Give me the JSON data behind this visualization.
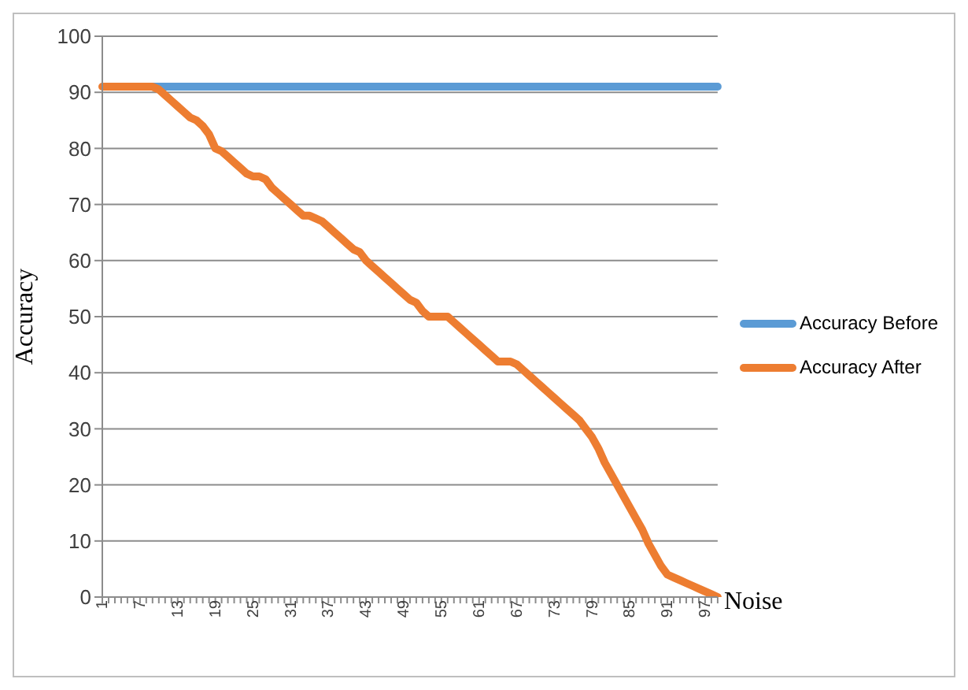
{
  "chart_data": {
    "type": "line",
    "xlabel": "Noise",
    "ylabel": "Accuracy",
    "categories": [
      "1",
      null,
      null,
      null,
      null,
      null,
      "7",
      null,
      null,
      null,
      null,
      null,
      "13",
      null,
      null,
      null,
      null,
      null,
      "19",
      null,
      null,
      null,
      null,
      null,
      "25",
      null,
      null,
      null,
      null,
      null,
      "31",
      null,
      null,
      null,
      null,
      null,
      "37",
      null,
      null,
      null,
      null,
      null,
      "43",
      null,
      null,
      null,
      null,
      null,
      "49",
      null,
      null,
      null,
      null,
      null,
      "55",
      null,
      null,
      null,
      null,
      null,
      "61",
      null,
      null,
      null,
      null,
      null,
      "67",
      null,
      null,
      null,
      null,
      null,
      "73",
      null,
      null,
      null,
      null,
      null,
      "79",
      null,
      null,
      null,
      null,
      null,
      "85",
      null,
      null,
      null,
      null,
      null,
      "91",
      null,
      null,
      null,
      null,
      null,
      "97",
      null,
      null
    ],
    "series": [
      {
        "name": "Accuracy Before",
        "color": "#5b9bd5",
        "values": [
          null,
          null,
          null,
          null,
          null,
          null,
          null,
          null,
          91,
          91,
          91,
          91,
          91,
          91,
          91,
          91,
          91,
          91,
          91,
          91,
          91,
          91,
          91,
          91,
          91,
          91,
          91,
          91,
          91,
          91,
          91,
          91,
          91,
          91,
          91,
          91,
          91,
          91,
          91,
          91,
          91,
          91,
          91,
          91,
          91,
          91,
          91,
          91,
          91,
          91,
          91,
          91,
          91,
          91,
          91,
          91,
          91,
          91,
          91,
          91,
          91,
          91,
          91,
          91,
          91,
          91,
          91,
          91,
          91,
          91,
          91,
          91,
          91,
          91,
          91,
          91,
          91,
          91,
          91,
          91,
          91,
          91,
          91,
          91,
          91,
          91,
          91,
          91,
          91,
          91,
          91,
          91,
          91,
          91,
          91,
          91,
          91,
          91,
          91
        ]
      },
      {
        "name": "Accuracy After",
        "color": "#ed7d31",
        "values": [
          91,
          91,
          91,
          91,
          91,
          91,
          91,
          91,
          91,
          90.5,
          89.5,
          88.5,
          87.5,
          86.5,
          85.5,
          85,
          84,
          82.5,
          80,
          79.5,
          78.5,
          77.5,
          76.5,
          75.5,
          75,
          75,
          74.5,
          73,
          72,
          71,
          70,
          69,
          68,
          68,
          67.5,
          67,
          66,
          65,
          64,
          63,
          62,
          61.5,
          60,
          59,
          58,
          57,
          56,
          55,
          54,
          53,
          52.5,
          51,
          50,
          50,
          50,
          50,
          49,
          48,
          47,
          46,
          45,
          44,
          43,
          42,
          42,
          42,
          41.5,
          40.5,
          39.5,
          38.5,
          37.5,
          36.5,
          35.5,
          34.5,
          33.5,
          32.5,
          31.5,
          30,
          28.5,
          26.5,
          24,
          22,
          20,
          18,
          16,
          14,
          12,
          9.5,
          7.5,
          5.5,
          4,
          3.5,
          3,
          2.5,
          2,
          1.5,
          1,
          0.5,
          0
        ]
      }
    ],
    "ylim": [
      0,
      100
    ],
    "yticks": [
      0,
      10,
      20,
      30,
      40,
      50,
      60,
      70,
      80,
      90,
      100
    ],
    "grid": "y",
    "legend": "right",
    "marker": "none",
    "line_style": "solid"
  }
}
